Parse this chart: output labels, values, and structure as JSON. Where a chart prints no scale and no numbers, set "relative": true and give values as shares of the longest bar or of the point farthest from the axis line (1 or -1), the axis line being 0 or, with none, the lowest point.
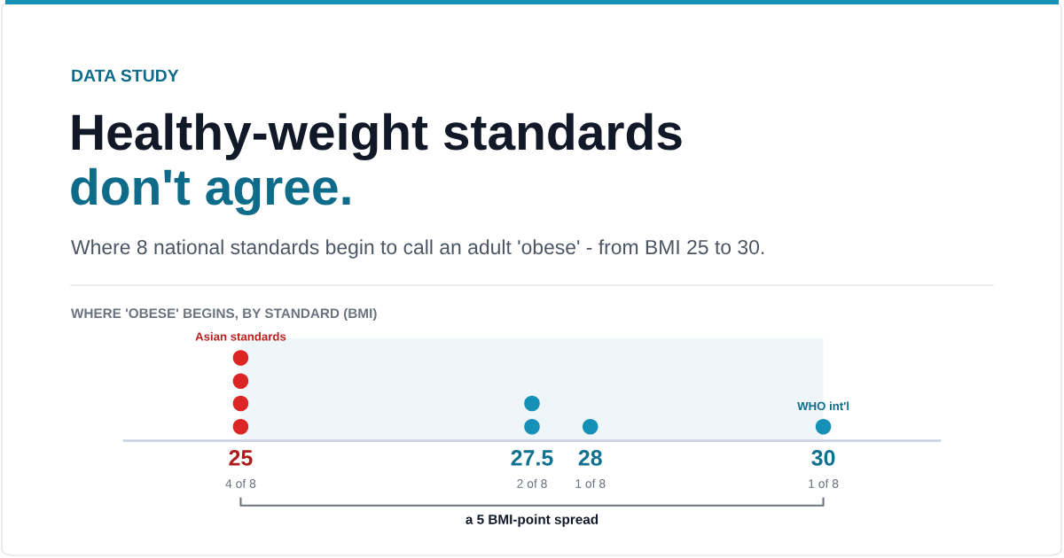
{
  "chart_data": {
    "type": "scatter",
    "title": "Healthy-weight standards\ndon't agree.",
    "subtitle": "Where 8 national standards begin to call an adult 'obese' - from BMI 25 to 30.",
    "xlabel": "WHERE 'OBESE' BEGINS, BY STANDARD (BMI)",
    "relative": true,
    "xlim": [
      24,
      31
    ],
    "xticks": [
      25,
      27.5,
      28,
      30
    ],
    "series": [
      {
        "name": "Asian standards",
        "color": "#dc2626",
        "x": [
          25,
          25,
          25,
          25
        ],
        "values": [
          0.17,
          0.45,
          0.72,
          1
        ]
      },
      {
        "color": "#1591b8",
        "x": [
          27.5,
          27.5,
          28,
          30
        ],
        "values": [
          0.17,
          0.45,
          0.17,
          0.17
        ]
      }
    ],
    "bands": [
      {
        "axis": "x",
        "from": 25,
        "to": 30,
        "color": "#eef6fa"
      }
    ],
    "annotations": [
      "DATA STUDY",
      "4 of 8",
      "2 of 8",
      "1 of 8",
      "1 of 8",
      "a 5 BMI-point spread",
      {
        "text": "WHO int'l",
        "x": 30,
        "y": 0.17
      }
    ],
    "marker": "circle",
    "grid": false,
    "legend": false
  }
}
